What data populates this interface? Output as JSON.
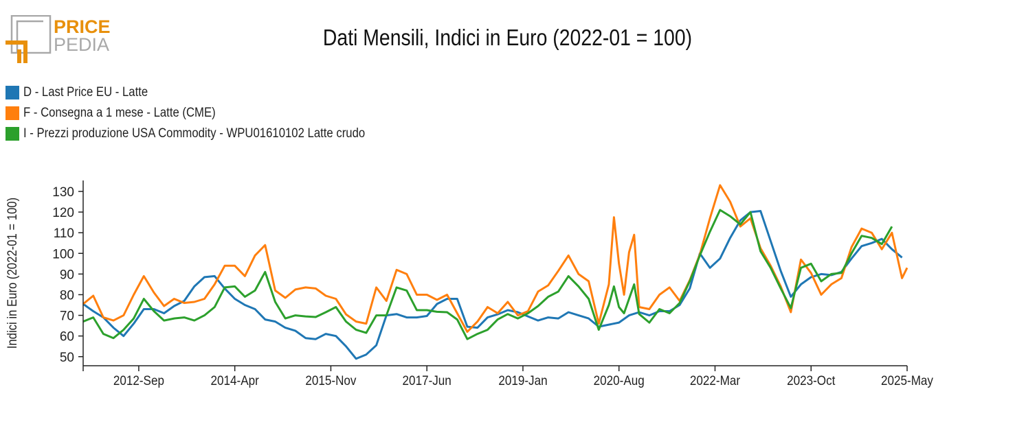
{
  "logo": {
    "word1": "PRICE",
    "word2": "PEDIA",
    "brand_color": "#e8900c",
    "gray": "#a8a8a8"
  },
  "title": "Dati Mensili, Indici in Euro (2022-01 = 100)",
  "legend": [
    {
      "label": "D - Last Price EU - Latte",
      "color": "#1f77b4"
    },
    {
      "label": "F - Consegna a 1 mese - Latte (CME)",
      "color": "#ff7f0e"
    },
    {
      "label": "I - Prezzi produzione USA Commodity - WPU01610102 Latte crudo",
      "color": "#2ca02c"
    }
  ],
  "chart_data": {
    "type": "line",
    "title": "Dati Mensili, Indici in Euro (2022-01 = 100)",
    "xlabel": "",
    "ylabel": "Indici in Euro (2022-01 = 100)",
    "xlim": [
      "2011-10",
      "2025-05"
    ],
    "ylim": [
      45.6,
      135.3
    ],
    "grid": false,
    "legend_position": "top-left",
    "x_ticks": [
      "2012-Sep",
      "2014-Apr",
      "2015-Nov",
      "2017-Jun",
      "2019-Jan",
      "2020-Aug",
      "2022-Mar",
      "2023-Oct",
      "2025-May"
    ],
    "x_tick_dates": [
      "2012-09",
      "2014-04",
      "2015-11",
      "2017-06",
      "2019-01",
      "2020-08",
      "2022-03",
      "2023-10",
      "2025-05"
    ],
    "y_ticks": [
      50,
      60,
      70,
      80,
      90,
      100,
      110,
      120,
      130
    ],
    "series": [
      {
        "name": "D - Last Price EU - Latte",
        "color": "#1f77b4",
        "points": [
          [
            "2011-10",
            75.5
          ],
          [
            "2011-12",
            72
          ],
          [
            "2012-02",
            69
          ],
          [
            "2012-04",
            64
          ],
          [
            "2012-06",
            60
          ],
          [
            "2012-08",
            66
          ],
          [
            "2012-10",
            73
          ],
          [
            "2012-12",
            73
          ],
          [
            "2013-02",
            71
          ],
          [
            "2013-04",
            74.5
          ],
          [
            "2013-06",
            77
          ],
          [
            "2013-08",
            84
          ],
          [
            "2013-10",
            88.5
          ],
          [
            "2013-12",
            89
          ],
          [
            "2014-02",
            83
          ],
          [
            "2014-04",
            78
          ],
          [
            "2014-06",
            75
          ],
          [
            "2014-08",
            73
          ],
          [
            "2014-10",
            68
          ],
          [
            "2014-12",
            67
          ],
          [
            "2015-02",
            64
          ],
          [
            "2015-04",
            62.5
          ],
          [
            "2015-06",
            59
          ],
          [
            "2015-08",
            58.5
          ],
          [
            "2015-10",
            61
          ],
          [
            "2015-12",
            60
          ],
          [
            "2016-02",
            55
          ],
          [
            "2016-04",
            49
          ],
          [
            "2016-06",
            51
          ],
          [
            "2016-08",
            55.5
          ],
          [
            "2016-10",
            70
          ],
          [
            "2016-12",
            70.6
          ],
          [
            "2017-02",
            69
          ],
          [
            "2017-04",
            69
          ],
          [
            "2017-06",
            69.7
          ],
          [
            "2017-08",
            75.5
          ],
          [
            "2017-10",
            78
          ],
          [
            "2017-12",
            78
          ],
          [
            "2018-02",
            64.5
          ],
          [
            "2018-04",
            64
          ],
          [
            "2018-06",
            69
          ],
          [
            "2018-08",
            70.5
          ],
          [
            "2018-10",
            72.5
          ],
          [
            "2018-12",
            71.5
          ],
          [
            "2019-02",
            69.5
          ],
          [
            "2019-04",
            67.5
          ],
          [
            "2019-06",
            69
          ],
          [
            "2019-08",
            68.5
          ],
          [
            "2019-10",
            71.5
          ],
          [
            "2019-12",
            70
          ],
          [
            "2020-02",
            68.5
          ],
          [
            "2020-04",
            64.5
          ],
          [
            "2020-06",
            65.5
          ],
          [
            "2020-08",
            66.5
          ],
          [
            "2020-10",
            70
          ],
          [
            "2020-12",
            71.5
          ],
          [
            "2021-02",
            70
          ],
          [
            "2021-04",
            72
          ],
          [
            "2021-06",
            72
          ],
          [
            "2021-08",
            75
          ],
          [
            "2021-10",
            83
          ],
          [
            "2021-12",
            100
          ],
          [
            "2022-02",
            93
          ],
          [
            "2022-04",
            97.5
          ],
          [
            "2022-06",
            107.5
          ],
          [
            "2022-08",
            116
          ],
          [
            "2022-10",
            120
          ],
          [
            "2022-12",
            120.5
          ],
          [
            "2023-02",
            106
          ],
          [
            "2023-04",
            91.5
          ],
          [
            "2023-06",
            79
          ],
          [
            "2023-08",
            85
          ],
          [
            "2023-10",
            88.5
          ],
          [
            "2023-12",
            90
          ],
          [
            "2024-02",
            89.5
          ],
          [
            "2024-04",
            91
          ],
          [
            "2024-06",
            97.5
          ],
          [
            "2024-08",
            103.5
          ],
          [
            "2024-10",
            105
          ],
          [
            "2024-12",
            107
          ],
          [
            "2025-02",
            102
          ],
          [
            "2025-04",
            98
          ]
        ]
      },
      {
        "name": "F - Consegna a 1 mese - Latte (CME)",
        "color": "#ff7f0e",
        "points": [
          [
            "2011-10",
            75.5
          ],
          [
            "2011-12",
            79.5
          ],
          [
            "2012-02",
            69
          ],
          [
            "2012-04",
            67.5
          ],
          [
            "2012-06",
            70
          ],
          [
            "2012-08",
            80
          ],
          [
            "2012-10",
            89
          ],
          [
            "2012-12",
            81
          ],
          [
            "2013-02",
            74.5
          ],
          [
            "2013-04",
            78
          ],
          [
            "2013-06",
            76
          ],
          [
            "2013-08",
            76.5
          ],
          [
            "2013-10",
            78
          ],
          [
            "2013-12",
            85
          ],
          [
            "2014-02",
            94
          ],
          [
            "2014-04",
            94
          ],
          [
            "2014-06",
            89
          ],
          [
            "2014-08",
            99
          ],
          [
            "2014-10",
            104
          ],
          [
            "2014-12",
            82
          ],
          [
            "2015-02",
            78.5
          ],
          [
            "2015-04",
            82.5
          ],
          [
            "2015-06",
            83.5
          ],
          [
            "2015-08",
            83
          ],
          [
            "2015-10",
            79.5
          ],
          [
            "2015-12",
            78
          ],
          [
            "2016-02",
            70.5
          ],
          [
            "2016-04",
            67
          ],
          [
            "2016-06",
            66
          ],
          [
            "2016-08",
            83.5
          ],
          [
            "2016-10",
            77
          ],
          [
            "2016-12",
            92
          ],
          [
            "2017-02",
            90
          ],
          [
            "2017-04",
            80
          ],
          [
            "2017-06",
            80
          ],
          [
            "2017-08",
            77.5
          ],
          [
            "2017-10",
            80
          ],
          [
            "2017-12",
            71
          ],
          [
            "2018-02",
            62
          ],
          [
            "2018-04",
            67
          ],
          [
            "2018-06",
            74
          ],
          [
            "2018-08",
            71
          ],
          [
            "2018-10",
            76.5
          ],
          [
            "2018-12",
            70
          ],
          [
            "2019-02",
            72
          ],
          [
            "2019-04",
            81.5
          ],
          [
            "2019-06",
            84.5
          ],
          [
            "2019-08",
            91.5
          ],
          [
            "2019-10",
            99
          ],
          [
            "2019-12",
            90
          ],
          [
            "2020-02",
            86.5
          ],
          [
            "2020-04",
            66
          ],
          [
            "2020-06",
            85
          ],
          [
            "2020-07",
            117.5
          ],
          [
            "2020-08",
            95
          ],
          [
            "2020-09",
            80
          ],
          [
            "2020-10",
            100.5
          ],
          [
            "2020-11",
            109
          ],
          [
            "2020-12",
            74
          ],
          [
            "2021-02",
            73
          ],
          [
            "2021-04",
            80
          ],
          [
            "2021-06",
            83.5
          ],
          [
            "2021-08",
            77
          ],
          [
            "2021-10",
            87
          ],
          [
            "2021-12",
            99.5
          ],
          [
            "2022-02",
            117
          ],
          [
            "2022-04",
            133
          ],
          [
            "2022-06",
            125
          ],
          [
            "2022-08",
            113
          ],
          [
            "2022-10",
            117
          ],
          [
            "2022-12",
            102.5
          ],
          [
            "2023-02",
            94
          ],
          [
            "2023-04",
            84
          ],
          [
            "2023-06",
            71.5
          ],
          [
            "2023-08",
            97
          ],
          [
            "2023-10",
            90.5
          ],
          [
            "2023-12",
            80
          ],
          [
            "2024-02",
            85
          ],
          [
            "2024-04",
            88
          ],
          [
            "2024-06",
            103
          ],
          [
            "2024-08",
            112
          ],
          [
            "2024-10",
            110
          ],
          [
            "2024-12",
            102
          ],
          [
            "2025-02",
            110
          ],
          [
            "2025-04",
            88
          ],
          [
            "2025-05",
            93
          ]
        ]
      },
      {
        "name": "I - Prezzi produzione USA Commodity - WPU01610102 Latte crudo",
        "color": "#2ca02c",
        "points": [
          [
            "2011-10",
            67
          ],
          [
            "2011-12",
            69
          ],
          [
            "2012-02",
            61
          ],
          [
            "2012-04",
            59
          ],
          [
            "2012-06",
            63
          ],
          [
            "2012-08",
            68.5
          ],
          [
            "2012-10",
            78
          ],
          [
            "2012-12",
            72
          ],
          [
            "2013-02",
            67.5
          ],
          [
            "2013-04",
            68.5
          ],
          [
            "2013-06",
            69
          ],
          [
            "2013-08",
            67.5
          ],
          [
            "2013-10",
            70
          ],
          [
            "2013-12",
            74
          ],
          [
            "2014-02",
            83.5
          ],
          [
            "2014-04",
            84
          ],
          [
            "2014-06",
            79
          ],
          [
            "2014-08",
            82
          ],
          [
            "2014-10",
            91
          ],
          [
            "2014-12",
            76.5
          ],
          [
            "2015-02",
            68.5
          ],
          [
            "2015-04",
            70
          ],
          [
            "2015-06",
            69.5
          ],
          [
            "2015-08",
            69.2
          ],
          [
            "2015-10",
            71.5
          ],
          [
            "2015-12",
            74
          ],
          [
            "2016-02",
            67
          ],
          [
            "2016-04",
            63
          ],
          [
            "2016-06",
            61.5
          ],
          [
            "2016-08",
            70
          ],
          [
            "2016-10",
            70
          ],
          [
            "2016-12",
            83.5
          ],
          [
            "2017-02",
            82
          ],
          [
            "2017-04",
            72.5
          ],
          [
            "2017-06",
            72.5
          ],
          [
            "2017-08",
            71.7
          ],
          [
            "2017-10",
            71.5
          ],
          [
            "2017-12",
            68
          ],
          [
            "2018-02",
            58.5
          ],
          [
            "2018-04",
            61
          ],
          [
            "2018-06",
            63
          ],
          [
            "2018-08",
            68
          ],
          [
            "2018-10",
            70.6
          ],
          [
            "2018-12",
            68.5
          ],
          [
            "2019-02",
            71
          ],
          [
            "2019-04",
            74.5
          ],
          [
            "2019-06",
            79
          ],
          [
            "2019-08",
            81.5
          ],
          [
            "2019-10",
            89
          ],
          [
            "2019-12",
            84
          ],
          [
            "2020-02",
            78
          ],
          [
            "2020-04",
            63
          ],
          [
            "2020-06",
            75
          ],
          [
            "2020-07",
            84
          ],
          [
            "2020-08",
            74
          ],
          [
            "2020-09",
            71
          ],
          [
            "2020-10",
            78
          ],
          [
            "2020-11",
            85
          ],
          [
            "2020-12",
            70.6
          ],
          [
            "2021-02",
            66.5
          ],
          [
            "2021-04",
            73
          ],
          [
            "2021-06",
            71
          ],
          [
            "2021-08",
            76
          ],
          [
            "2021-10",
            86.5
          ],
          [
            "2021-12",
            99
          ],
          [
            "2022-02",
            110.5
          ],
          [
            "2022-04",
            121
          ],
          [
            "2022-06",
            118
          ],
          [
            "2022-08",
            114
          ],
          [
            "2022-10",
            120
          ],
          [
            "2022-12",
            101
          ],
          [
            "2023-02",
            93
          ],
          [
            "2023-04",
            83
          ],
          [
            "2023-06",
            73.5
          ],
          [
            "2023-08",
            93
          ],
          [
            "2023-10",
            95
          ],
          [
            "2023-12",
            86.5
          ],
          [
            "2024-02",
            90
          ],
          [
            "2024-04",
            90.5
          ],
          [
            "2024-06",
            100
          ],
          [
            "2024-08",
            108.5
          ],
          [
            "2024-10",
            107.5
          ],
          [
            "2024-12",
            104.5
          ],
          [
            "2025-02",
            113
          ]
        ]
      }
    ]
  }
}
